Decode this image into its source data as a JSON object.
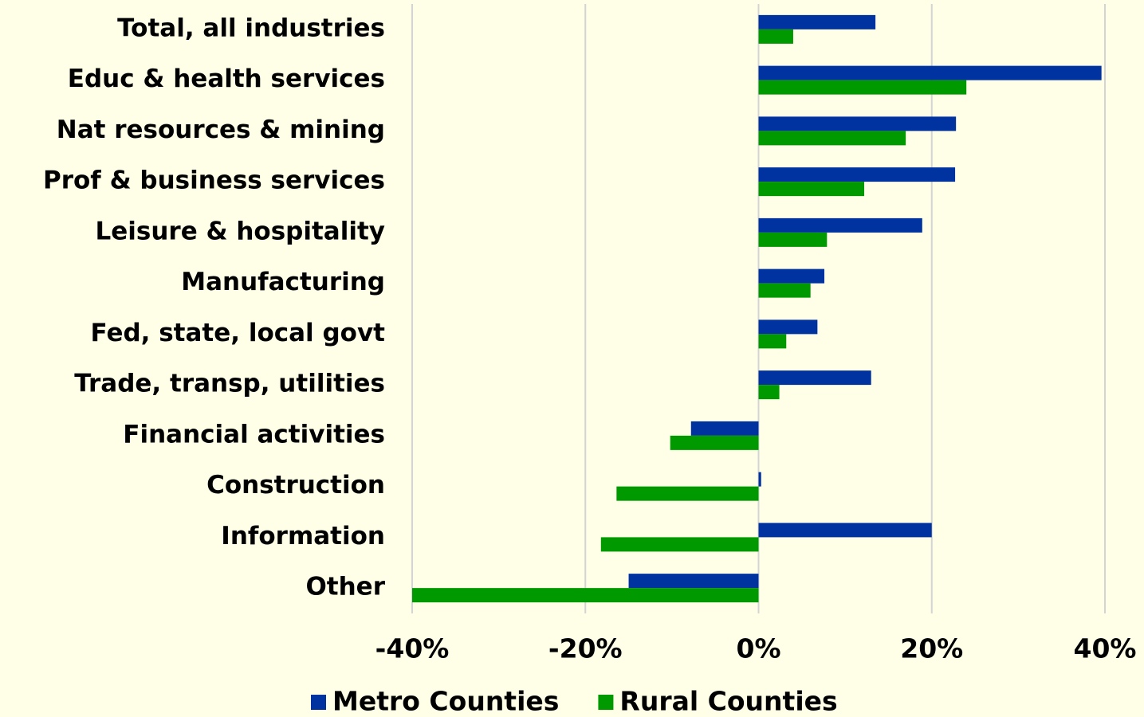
{
  "chart_data": {
    "type": "bar",
    "orientation": "horizontal",
    "categories": [
      "Total, all industries",
      "Educ & health services",
      "Nat resources & mining",
      "Prof & business services",
      "Leisure & hospitality",
      "Manufacturing",
      "Fed, state, local govt",
      "Trade, transp, utilities",
      "Financial activities",
      "Construction",
      "Information",
      "Other"
    ],
    "series": [
      {
        "name": "Metro Counties",
        "color": "#0033a0",
        "values": [
          13.5,
          39.6,
          22.8,
          22.7,
          18.9,
          7.6,
          6.8,
          13.0,
          -7.8,
          0.3,
          20.0,
          -15.0
        ]
      },
      {
        "name": "Rural Counties",
        "color": "#009900",
        "values": [
          4.0,
          24.0,
          17.0,
          12.2,
          7.9,
          6.0,
          3.2,
          2.4,
          -10.2,
          -16.4,
          -18.2,
          -40.0
        ]
      }
    ],
    "xlim": [
      -40,
      40
    ],
    "xticks": [
      {
        "value": -40,
        "label": "-40%"
      },
      {
        "value": -20,
        "label": "-20%"
      },
      {
        "value": 0,
        "label": "0%"
      },
      {
        "value": 20,
        "label": "20%"
      },
      {
        "value": 40,
        "label": "40%"
      }
    ],
    "grid": true,
    "legend": "bottom"
  }
}
